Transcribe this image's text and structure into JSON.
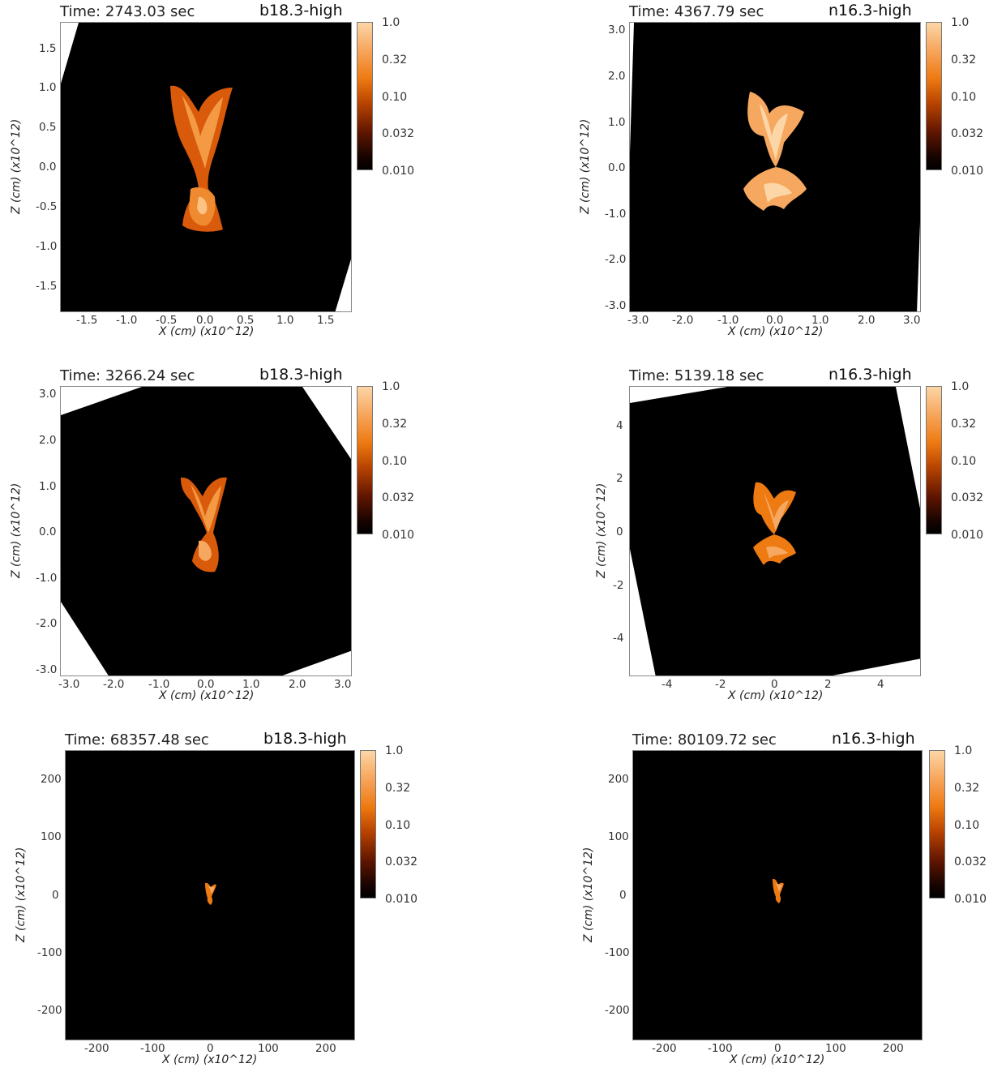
{
  "panels": [
    {
      "time": "Time: 2743.03 sec",
      "model": "b18.3-high",
      "xlabel": "X (cm) (x10^12)",
      "ylabel": "Z (cm) (x10^12)",
      "xticks": [
        "-1.5",
        "-1.0",
        "-0.5",
        "0.0",
        "0.5",
        "1.0",
        "1.5"
      ],
      "yticks": [
        "1.5",
        "1.0",
        "0.5",
        "0.0",
        "-0.5",
        "-1.0",
        "-1.5"
      ]
    },
    {
      "time": "Time: 4367.79 sec",
      "model": "n16.3-high",
      "xlabel": "X (cm) (x10^12)",
      "ylabel": "Z (cm) (x10^12)",
      "xticks": [
        "-3.0",
        "-2.0",
        "-1.0",
        "0.0",
        "1.0",
        "2.0",
        "3.0"
      ],
      "yticks": [
        "3.0",
        "2.0",
        "1.0",
        "0.0",
        "-1.0",
        "-2.0",
        "-3.0"
      ]
    },
    {
      "time": "Time: 3266.24 sec",
      "model": "b18.3-high",
      "xlabel": "X (cm) (x10^12)",
      "ylabel": "Z (cm) (x10^12)",
      "xticks": [
        "-3.0",
        "-2.0",
        "-1.0",
        "0.0",
        "1.0",
        "2.0",
        "3.0"
      ],
      "yticks": [
        "3.0",
        "2.0",
        "1.0",
        "0.0",
        "-1.0",
        "-2.0",
        "-3.0"
      ]
    },
    {
      "time": "Time: 5139.18 sec",
      "model": "n16.3-high",
      "xlabel": "X (cm) (x10^12)",
      "ylabel": "Z (cm) (x10^12)",
      "xticks": [
        "-4",
        "-2",
        "0",
        "2",
        "4"
      ],
      "yticks": [
        "4",
        "2",
        "0",
        "-2",
        "-4"
      ]
    },
    {
      "time": "Time: 68357.48 sec",
      "model": "b18.3-high",
      "xlabel": "X (cm) (x10^12)",
      "ylabel": "Z (cm) (x10^12)",
      "xticks": [
        "-200",
        "-100",
        "0",
        "100",
        "200"
      ],
      "yticks": [
        "200",
        "100",
        "0",
        "-100",
        "-200"
      ]
    },
    {
      "time": "Time: 80109.72 sec",
      "model": "n16.3-high",
      "xlabel": "X (cm) (x10^12)",
      "ylabel": "Z (cm) (x10^12)",
      "xticks": [
        "-200",
        "-100",
        "0",
        "100",
        "200"
      ],
      "yticks": [
        "200",
        "100",
        "0",
        "-100",
        "-200"
      ]
    }
  ],
  "colorbar": {
    "ticks": [
      "1.0",
      "0.32",
      "0.10",
      "0.032",
      "0.010"
    ],
    "colors": [
      "#fcd6a6",
      "#f7a860",
      "#ee7a12",
      "#b84300",
      "#5e1500",
      "#000000"
    ]
  }
}
